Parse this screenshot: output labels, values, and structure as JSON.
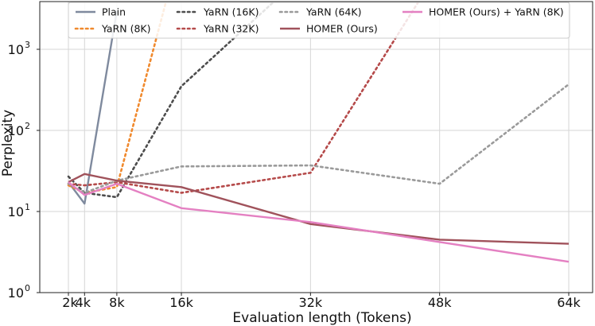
{
  "chart_data": {
    "type": "line",
    "title": "",
    "xlabel": "Evaluation length (Tokens)",
    "ylabel": "Perplexity",
    "yscale": "log",
    "xlim": [
      0,
      66000
    ],
    "ylim": [
      1,
      5000
    ],
    "grid": true,
    "legend_position": "top",
    "x_ticks": [
      {
        "value": 2000,
        "label": "2k"
      },
      {
        "value": 4000,
        "label": "4k"
      },
      {
        "value": 8000,
        "label": "8k"
      },
      {
        "value": 16000,
        "label": "16k"
      },
      {
        "value": 32000,
        "label": "32k"
      },
      {
        "value": 48000,
        "label": "48k"
      },
      {
        "value": 64000,
        "label": "64k"
      }
    ],
    "y_ticks": [
      {
        "value": 1,
        "base": "10",
        "exp": "0"
      },
      {
        "value": 10,
        "base": "10",
        "exp": "1"
      },
      {
        "value": 100,
        "base": "10",
        "exp": "2"
      },
      {
        "value": 1000,
        "base": "10",
        "exp": "3"
      }
    ],
    "series": [
      {
        "name": "Plain",
        "color": "#7f8a9e",
        "style": "solid",
        "x": [
          2000,
          4000,
          8000
        ],
        "values": [
          23,
          12.5,
          3000
        ]
      },
      {
        "name": "YaRN (8K)",
        "color": "#f0892d",
        "style": "dotted",
        "x": [
          2000,
          4000,
          8000,
          16000
        ],
        "values": [
          21,
          17,
          20,
          20000
        ]
      },
      {
        "name": "YaRN (16K)",
        "color": "#4d4d4d",
        "style": "dotted",
        "x": [
          2000,
          4000,
          8000,
          16000,
          32000
        ],
        "values": [
          27,
          17,
          15,
          350,
          10000
        ]
      },
      {
        "name": "YaRN (32K)",
        "color": "#b54a4a",
        "style": "dotted",
        "x": [
          2000,
          4000,
          8000,
          16000,
          32000,
          48000
        ],
        "values": [
          22,
          21,
          23,
          17,
          30,
          10000
        ]
      },
      {
        "name": "YaRN (64K)",
        "color": "#9a9a9a",
        "style": "dotted",
        "x": [
          2000,
          4000,
          8000,
          16000,
          32000,
          48000,
          64000
        ],
        "values": [
          22,
          17,
          24,
          36,
          37,
          22,
          370
        ]
      },
      {
        "name": "HOMER (Ours)",
        "color": "#a0525b",
        "style": "solid",
        "x": [
          2000,
          4000,
          8000,
          16000,
          32000,
          48000,
          64000
        ],
        "values": [
          23,
          29,
          24,
          20,
          7,
          4.5,
          4
        ]
      },
      {
        "name": "HOMER (Ours) + YaRN (8K)",
        "color": "#e480c2",
        "style": "solid",
        "x": [
          2000,
          4000,
          8000,
          16000,
          32000,
          48000,
          64000
        ],
        "values": [
          23,
          16,
          22,
          11,
          7.4,
          4.2,
          2.4
        ]
      }
    ]
  }
}
